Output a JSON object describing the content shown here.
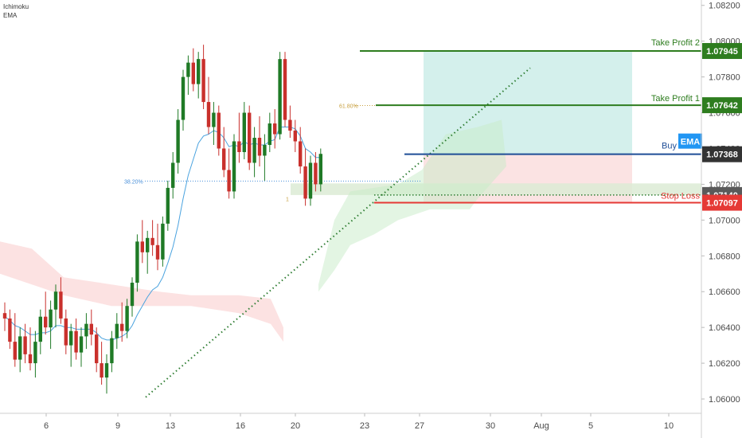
{
  "indicators": [
    "Ichimoku",
    "EMA"
  ],
  "colors": {
    "up": "#1f7a26",
    "down": "#c9302c",
    "ema": "#4aa3df",
    "tp": "#2e7d1f",
    "buy": "#1f4e96",
    "sl": "#e53935",
    "target_zone": "#cfeeea",
    "stop_zone": "#fbe0e0",
    "support_zone": "#dcebd5"
  },
  "chart_data": {
    "type": "candlestick",
    "x_ticks": [
      "6",
      "9",
      "13",
      "16",
      "20",
      "23",
      "27",
      "30",
      "Aug",
      "5",
      "10"
    ],
    "y_ticks": [
      "1.08200",
      "1.08000",
      "1.07800",
      "1.07600",
      "1.07400",
      "1.07200",
      "1.07000",
      "1.06800",
      "1.06600",
      "1.06400",
      "1.06200",
      "1.06000"
    ],
    "y_range": [
      1.0592,
      1.0823
    ],
    "levels": [
      {
        "label": "Take Profit 2",
        "value": "1.07945",
        "color": "tp"
      },
      {
        "label": "Take Profit 1",
        "value": "1.07642",
        "color": "tp"
      },
      {
        "label": "Buy",
        "value": "1.07368",
        "color": "buy",
        "badge": "EMA"
      },
      {
        "label": "",
        "value": "1.07140",
        "color": "gray"
      },
      {
        "label": "Stop Loss",
        "value": "1.07097",
        "color": "sl"
      }
    ],
    "fib_labels": [
      "38.20%",
      "61.80%",
      "1"
    ],
    "candles": [
      [
        1.0648,
        1.0654,
        1.0638,
        1.0645
      ],
      [
        1.0645,
        1.065,
        1.0628,
        1.0632
      ],
      [
        1.0632,
        1.0648,
        1.0618,
        1.0622
      ],
      [
        1.0622,
        1.064,
        1.0615,
        1.0635
      ],
      [
        1.0635,
        1.0642,
        1.062,
        1.0625
      ],
      [
        1.0625,
        1.064,
        1.0616,
        1.062
      ],
      [
        1.062,
        1.0638,
        1.0612,
        1.0632
      ],
      [
        1.0632,
        1.065,
        1.0625,
        1.0646
      ],
      [
        1.0646,
        1.066,
        1.0636,
        1.064
      ],
      [
        1.064,
        1.0655,
        1.0628,
        1.065
      ],
      [
        1.065,
        1.0664,
        1.064,
        1.066
      ],
      [
        1.066,
        1.0668,
        1.0642,
        1.0645
      ],
      [
        1.0645,
        1.065,
        1.0625,
        1.063
      ],
      [
        1.063,
        1.0642,
        1.0618,
        1.0638
      ],
      [
        1.0638,
        1.0645,
        1.0622,
        1.0626
      ],
      [
        1.0626,
        1.064,
        1.0618,
        1.0635
      ],
      [
        1.0635,
        1.0648,
        1.0628,
        1.0642
      ],
      [
        1.0642,
        1.065,
        1.063,
        1.0636
      ],
      [
        1.0636,
        1.064,
        1.0615,
        1.062
      ],
      [
        1.062,
        1.0632,
        1.0608,
        1.0612
      ],
      [
        1.0612,
        1.0625,
        1.0603,
        1.062
      ],
      [
        1.062,
        1.0638,
        1.0615,
        1.0634
      ],
      [
        1.0634,
        1.0648,
        1.0628,
        1.0642
      ],
      [
        1.0642,
        1.0654,
        1.0632,
        1.0638
      ],
      [
        1.0638,
        1.0656,
        1.0634,
        1.0652
      ],
      [
        1.0652,
        1.0668,
        1.0646,
        1.0665
      ],
      [
        1.0665,
        1.0692,
        1.066,
        1.0688
      ],
      [
        1.0688,
        1.07,
        1.0676,
        1.0682
      ],
      [
        1.0682,
        1.0694,
        1.067,
        1.069
      ],
      [
        1.069,
        1.07,
        1.068,
        1.0686
      ],
      [
        1.0686,
        1.0698,
        1.0672,
        1.0678
      ],
      [
        1.0678,
        1.0702,
        1.0674,
        1.0698
      ],
      [
        1.0698,
        1.0722,
        1.0694,
        1.0718
      ],
      [
        1.0718,
        1.0738,
        1.0712,
        1.0732
      ],
      [
        1.0732,
        1.0762,
        1.0726,
        1.0756
      ],
      [
        1.0756,
        1.0784,
        1.075,
        1.078
      ],
      [
        1.078,
        1.0792,
        1.077,
        1.0788
      ],
      [
        1.0788,
        1.0796,
        1.0772,
        1.0776
      ],
      [
        1.0776,
        1.0794,
        1.0768,
        1.079
      ],
      [
        1.079,
        1.0798,
        1.0762,
        1.0766
      ],
      [
        1.0766,
        1.078,
        1.0748,
        1.0752
      ],
      [
        1.0752,
        1.0766,
        1.0742,
        1.076
      ],
      [
        1.076,
        1.0764,
        1.0736,
        1.074
      ],
      [
        1.074,
        1.0752,
        1.0724,
        1.0728
      ],
      [
        1.0728,
        1.074,
        1.0712,
        1.0716
      ],
      [
        1.0716,
        1.0748,
        1.0712,
        1.0744
      ],
      [
        1.0744,
        1.076,
        1.0732,
        1.0738
      ],
      [
        1.0738,
        1.0766,
        1.0734,
        1.076
      ],
      [
        1.076,
        1.0764,
        1.0728,
        1.0732
      ],
      [
        1.0732,
        1.0752,
        1.0724,
        1.0746
      ],
      [
        1.0746,
        1.0758,
        1.073,
        1.0736
      ],
      [
        1.0736,
        1.0748,
        1.0722,
        1.0742
      ],
      [
        1.0742,
        1.076,
        1.0738,
        1.0754
      ],
      [
        1.0754,
        1.0762,
        1.074,
        1.0748
      ],
      [
        1.0748,
        1.0794,
        1.0745,
        1.079
      ],
      [
        1.079,
        1.0794,
        1.0752,
        1.0756
      ],
      [
        1.0756,
        1.0764,
        1.0746,
        1.075
      ],
      [
        1.075,
        1.0756,
        1.0738,
        1.0744
      ],
      [
        1.0744,
        1.0752,
        1.0726,
        1.073
      ],
      [
        1.073,
        1.074,
        1.0708,
        1.0712
      ],
      [
        1.0712,
        1.0736,
        1.0708,
        1.0732
      ],
      [
        1.0732,
        1.0738,
        1.0716,
        1.072
      ],
      [
        1.072,
        1.074,
        1.0716,
        1.0737
      ]
    ],
    "ema": [
      1.0646,
      1.0644,
      1.0641,
      1.064,
      1.0638,
      1.0636,
      1.0636,
      1.0637,
      1.0637,
      1.0638,
      1.0641,
      1.0641,
      1.064,
      1.064,
      1.0639,
      1.0639,
      1.0639,
      1.0639,
      1.0637,
      1.0634,
      1.0633,
      1.0633,
      1.0634,
      1.0635,
      1.0637,
      1.0641,
      1.0647,
      1.0652,
      1.0657,
      1.0661,
      1.0663,
      1.0668,
      1.0676,
      1.0685,
      1.0697,
      1.0712,
      1.0725,
      1.0734,
      1.0743,
      1.0747,
      1.0748,
      1.075,
      1.0749,
      1.0746,
      1.0741,
      1.0742,
      1.0741,
      1.0744,
      1.0742,
      1.0743,
      1.0742,
      1.0742,
      1.0744,
      1.0745,
      1.0752,
      1.0752,
      1.0752,
      1.0751,
      1.0747,
      1.074,
      1.0738,
      1.0735,
      1.0735
    ]
  }
}
